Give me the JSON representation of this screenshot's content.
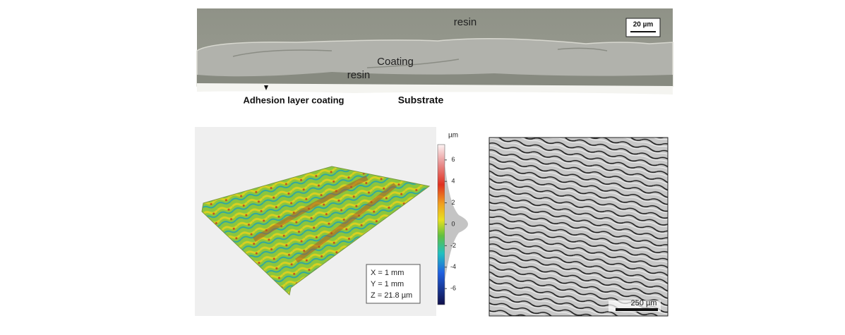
{
  "micrograph": {
    "resin_top": "resin",
    "scale_bar": "20 µm",
    "coating": "Coating",
    "resin_inner": "resin",
    "adhesion_layer": "Adhesion layer coating",
    "substrate": "Substrate"
  },
  "topography": {
    "colorbar_unit": "µm",
    "colorbar_ticks": [
      6,
      4,
      2,
      0,
      -2,
      -4,
      -6
    ],
    "dimensions": [
      "X = 1 mm",
      "Y = 1 mm",
      "Z = 21.8 µm"
    ]
  },
  "shaded_image": {
    "scale_bar": "250 µm"
  }
}
